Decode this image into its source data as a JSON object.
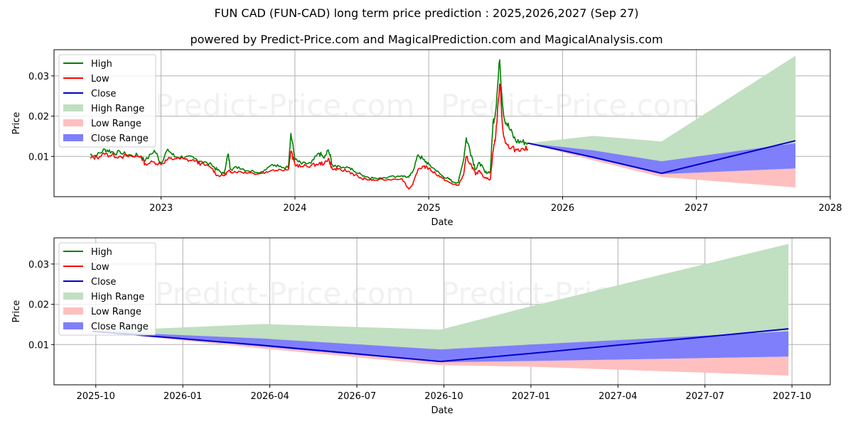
{
  "title": "FUN CAD (FUN-CAD) long term price prediction : 2025,2026,2027 (Sep 27)",
  "subtitle": "powered by Predict-Price.com and MagicalPrediction.com and MagicalAnalysis.com",
  "watermark": "Predict-Price.com",
  "colors": {
    "high": "#008000",
    "low": "#ff0000",
    "close": "#0000cc",
    "high_range": "#c1dfc1",
    "low_range": "#ffbfbf",
    "close_range": "#7f7ffb",
    "grid": "#b0b0b0"
  },
  "legend": [
    "High",
    "Low",
    "Close",
    "High Range",
    "Low Range",
    "Close Range"
  ],
  "chart_data": [
    {
      "type": "line",
      "id": "long-term",
      "xlabel": "Date",
      "ylabel": "Price",
      "x_ticks": [
        "2023",
        "2024",
        "2025",
        "2026",
        "2027",
        "2028"
      ],
      "y_ticks": [
        "0.01",
        "0.02",
        "0.03"
      ],
      "xlim": [
        2022.2,
        2028.0
      ],
      "ylim": [
        0.0,
        0.0365
      ],
      "grid": true,
      "legend_position": "upper left",
      "history": {
        "x": [
          2022.47,
          2022.52,
          2022.58,
          2022.63,
          2022.7,
          2022.78,
          2022.85,
          2022.88,
          2022.95,
          2023.0,
          2023.05,
          2023.1,
          2023.18,
          2023.25,
          2023.3,
          2023.38,
          2023.42,
          2023.47,
          2023.5,
          2023.52,
          2023.58,
          2023.65,
          2023.75,
          2023.82,
          2023.88,
          2023.95,
          2023.97,
          2024.0,
          2024.05,
          2024.12,
          2024.18,
          2024.22,
          2024.25,
          2024.28,
          2024.32,
          2024.4,
          2024.45,
          2024.5,
          2024.55,
          2024.6,
          2024.7,
          2024.8,
          2024.85,
          2024.88,
          2024.92,
          2024.96,
          2025.0,
          2025.05,
          2025.1,
          2025.15,
          2025.18,
          2025.22,
          2025.26,
          2025.28,
          2025.32,
          2025.35,
          2025.38,
          2025.42,
          2025.46,
          2025.48,
          2025.5,
          2025.53,
          2025.56,
          2025.6,
          2025.65,
          2025.7,
          2025.74
        ],
        "high": [
          0.0105,
          0.0102,
          0.0118,
          0.0112,
          0.0107,
          0.0103,
          0.0101,
          0.0088,
          0.0115,
          0.0084,
          0.0118,
          0.0099,
          0.0098,
          0.0094,
          0.0088,
          0.0078,
          0.0066,
          0.0057,
          0.0106,
          0.0068,
          0.0074,
          0.0064,
          0.0062,
          0.0078,
          0.0075,
          0.0072,
          0.0157,
          0.0092,
          0.0081,
          0.0083,
          0.0108,
          0.0096,
          0.0116,
          0.0079,
          0.0077,
          0.0072,
          0.0062,
          0.0054,
          0.0048,
          0.0046,
          0.0049,
          0.0052,
          0.0048,
          0.0062,
          0.0104,
          0.0092,
          0.0081,
          0.0066,
          0.0052,
          0.0044,
          0.0037,
          0.0035,
          0.0092,
          0.0146,
          0.0102,
          0.0067,
          0.0085,
          0.006,
          0.0062,
          0.0184,
          0.0212,
          0.034,
          0.02,
          0.017,
          0.0138,
          0.0136,
          0.0134
        ],
        "low": [
          0.0096,
          0.0098,
          0.0105,
          0.0103,
          0.01,
          0.01,
          0.0099,
          0.0082,
          0.0086,
          0.008,
          0.0093,
          0.0094,
          0.0093,
          0.0088,
          0.0082,
          0.007,
          0.0053,
          0.0052,
          0.0063,
          0.0062,
          0.0063,
          0.0059,
          0.0058,
          0.0064,
          0.0068,
          0.0067,
          0.0113,
          0.008,
          0.0075,
          0.0077,
          0.0082,
          0.0083,
          0.0095,
          0.0068,
          0.0068,
          0.0063,
          0.0054,
          0.0045,
          0.0042,
          0.0041,
          0.0043,
          0.0045,
          0.0019,
          0.003,
          0.0068,
          0.0075,
          0.007,
          0.0058,
          0.0046,
          0.0036,
          0.0031,
          0.0028,
          0.0054,
          0.0099,
          0.0078,
          0.0054,
          0.0065,
          0.0046,
          0.0043,
          0.0112,
          0.015,
          0.028,
          0.015,
          0.012,
          0.0118,
          0.012,
          0.0118
        ]
      },
      "forecast": {
        "x": [
          2025.74,
          2026.23,
          2026.74,
          2027.74
        ],
        "close": [
          0.0133,
          0.0098,
          0.0058,
          0.0139
        ],
        "high_range_top": [
          0.0133,
          0.0151,
          0.0137,
          0.035
        ],
        "close_range_top": [
          0.0133,
          0.0115,
          0.0088,
          0.0133
        ],
        "close_range_bottom": [
          0.0133,
          0.0095,
          0.0056,
          0.007
        ],
        "low_range_bottom": [
          0.0133,
          0.009,
          0.0049,
          0.0023
        ]
      }
    },
    {
      "type": "line",
      "id": "forecast-zoom",
      "xlabel": "Date",
      "ylabel": "Price",
      "x_ticks": [
        "2025-10",
        "2026-01",
        "2026-04",
        "2026-07",
        "2026-10",
        "2027-01",
        "2027-04",
        "2027-07",
        "2027-10"
      ],
      "y_ticks": [
        "0.01",
        "0.02",
        "0.03"
      ],
      "xlim": [
        2025.63,
        2027.86
      ],
      "ylim": [
        0.0,
        0.0365
      ],
      "grid": true,
      "legend_position": "upper left",
      "forecast": {
        "x": [
          2025.74,
          2026.23,
          2026.74,
          2027.0,
          2027.74
        ],
        "close": [
          0.0133,
          0.0098,
          0.0058,
          0.0078,
          0.0139
        ],
        "high_range_top": [
          0.0133,
          0.0151,
          0.0137,
          0.0195,
          0.035
        ],
        "close_range_top": [
          0.0133,
          0.0115,
          0.0088,
          0.01,
          0.0133
        ],
        "close_range_bottom": [
          0.0133,
          0.0095,
          0.0056,
          0.0059,
          0.007
        ],
        "low_range_bottom": [
          0.0133,
          0.009,
          0.0049,
          0.0045,
          0.0023
        ]
      }
    }
  ]
}
